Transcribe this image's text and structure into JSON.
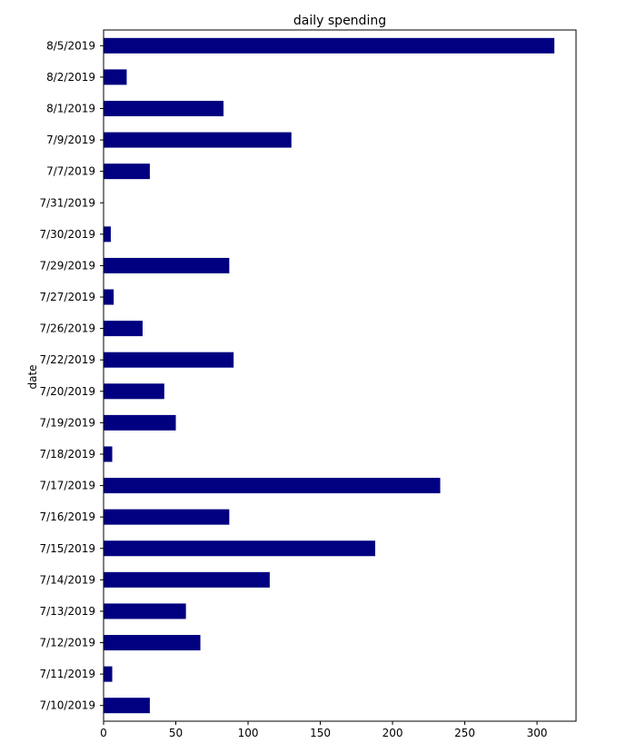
{
  "chart_data": {
    "type": "bar",
    "orientation": "horizontal",
    "title": "daily spending",
    "xlabel": "",
    "ylabel": "date",
    "xlim": [
      0,
      327
    ],
    "xticks": [
      0,
      50,
      100,
      150,
      200,
      250,
      300
    ],
    "grid": false,
    "bar_color": "#000080",
    "categories": [
      "8/5/2019",
      "8/2/2019",
      "8/1/2019",
      "7/9/2019",
      "7/7/2019",
      "7/31/2019",
      "7/30/2019",
      "7/29/2019",
      "7/27/2019",
      "7/26/2019",
      "7/22/2019",
      "7/20/2019",
      "7/19/2019",
      "7/18/2019",
      "7/17/2019",
      "7/16/2019",
      "7/15/2019",
      "7/14/2019",
      "7/13/2019",
      "7/12/2019",
      "7/11/2019",
      "7/10/2019"
    ],
    "values": [
      312,
      16,
      83,
      130,
      32,
      0,
      5,
      87,
      7,
      27,
      90,
      42,
      50,
      6,
      233,
      87,
      188,
      115,
      57,
      67,
      6,
      32
    ]
  }
}
